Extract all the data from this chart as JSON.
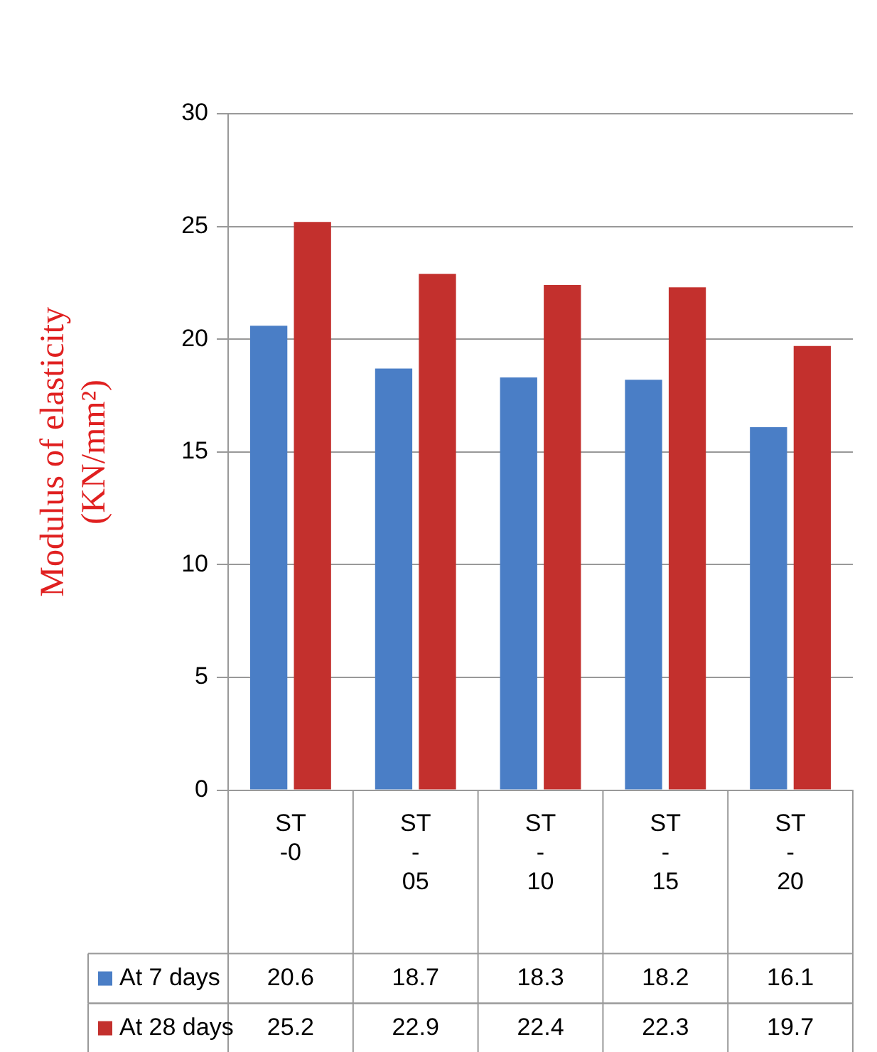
{
  "chart_data": {
    "type": "bar",
    "ylabel": "Modulus of elasticity (KN/mm²)",
    "categories": [
      "ST -0",
      "ST - 05",
      "ST - 10",
      "ST - 15",
      "ST - 20"
    ],
    "series": [
      {
        "name": "At 7 days",
        "color": "#4a7ec6",
        "values": [
          20.6,
          18.7,
          18.3,
          18.2,
          16.1
        ]
      },
      {
        "name": "At 28 days",
        "color": "#c3302d",
        "values": [
          25.2,
          22.9,
          22.4,
          22.3,
          19.7
        ]
      }
    ],
    "ylim": [
      0,
      30
    ],
    "yticks": [
      0,
      5,
      10,
      15,
      20,
      25,
      30
    ],
    "grid": "y",
    "legend": "bottom",
    "data_labels": true
  }
}
